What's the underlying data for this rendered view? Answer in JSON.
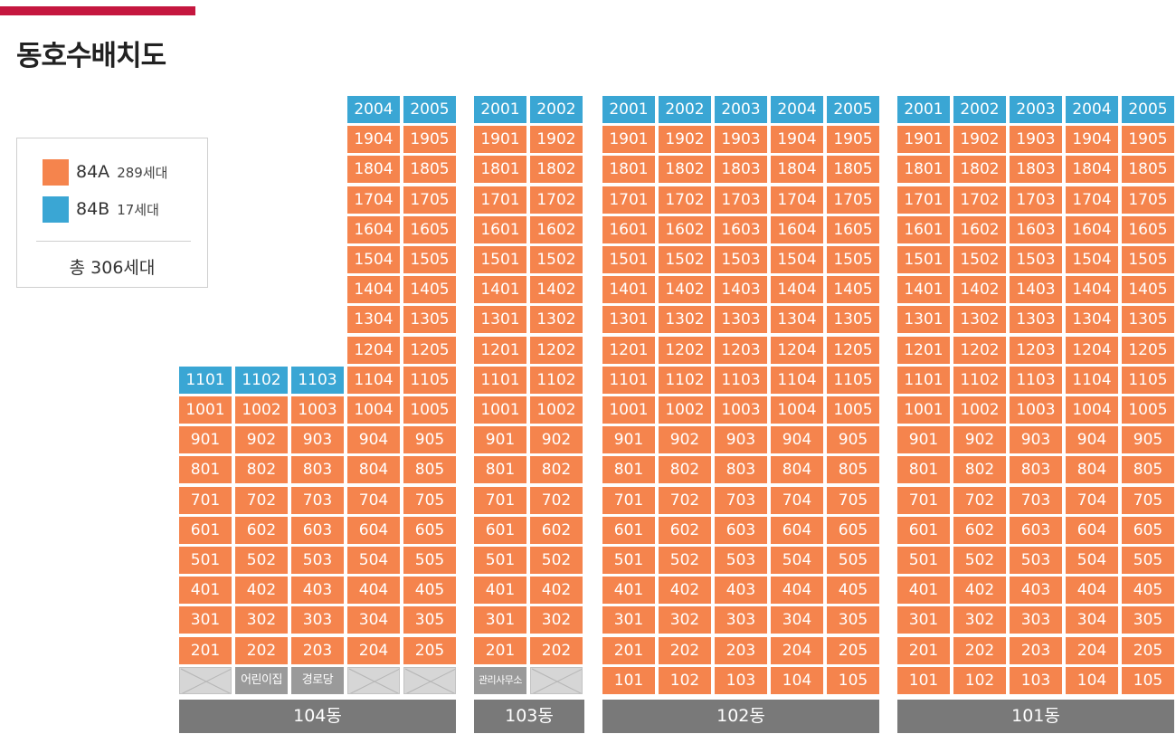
{
  "title": "동호수배치도",
  "colors": {
    "accent": "#c5173f",
    "type_a": "#f5844d",
    "type_b": "#3aa6d4",
    "facility": "#9a9a9a",
    "empty": "#d6d6d6",
    "building_label": "#797979"
  },
  "legend": {
    "items": [
      {
        "type": "84A",
        "count": "289세대",
        "color": "#f5844d"
      },
      {
        "type": "84B",
        "count": "17세대",
        "color": "#3aa6d4"
      }
    ],
    "total": "총 306세대"
  },
  "buildings": [
    {
      "name": "104동",
      "lines": [
        1,
        2,
        3,
        4,
        5
      ],
      "floors": [
        [
          "",
          "",
          "",
          "2004",
          "2005"
        ],
        [
          "",
          "",
          "",
          "1904",
          "1905"
        ],
        [
          "",
          "",
          "",
          "1804",
          "1805"
        ],
        [
          "",
          "",
          "",
          "1704",
          "1705"
        ],
        [
          "",
          "",
          "",
          "1604",
          "1605"
        ],
        [
          "",
          "",
          "",
          "1504",
          "1505"
        ],
        [
          "",
          "",
          "",
          "1404",
          "1405"
        ],
        [
          "",
          "",
          "",
          "1304",
          "1305"
        ],
        [
          "",
          "",
          "",
          "1204",
          "1205"
        ],
        [
          "1101",
          "1102",
          "1103",
          "1104",
          "1105"
        ],
        [
          "1001",
          "1002",
          "1003",
          "1004",
          "1005"
        ],
        [
          "901",
          "902",
          "903",
          "904",
          "905"
        ],
        [
          "801",
          "802",
          "803",
          "804",
          "805"
        ],
        [
          "701",
          "702",
          "703",
          "704",
          "705"
        ],
        [
          "601",
          "602",
          "603",
          "604",
          "605"
        ],
        [
          "501",
          "502",
          "503",
          "504",
          "505"
        ],
        [
          "401",
          "402",
          "403",
          "404",
          "405"
        ],
        [
          "301",
          "302",
          "303",
          "304",
          "305"
        ],
        [
          "201",
          "202",
          "203",
          "204",
          "205"
        ],
        [
          "",
          "어린이집",
          "경로당",
          "",
          ""
        ]
      ],
      "types": [
        [
          "",
          "",
          "",
          "B",
          "B"
        ],
        [
          "",
          "",
          "",
          "A",
          "A"
        ],
        [
          "",
          "",
          "",
          "A",
          "A"
        ],
        [
          "",
          "",
          "",
          "A",
          "A"
        ],
        [
          "",
          "",
          "",
          "A",
          "A"
        ],
        [
          "",
          "",
          "",
          "A",
          "A"
        ],
        [
          "",
          "",
          "",
          "A",
          "A"
        ],
        [
          "",
          "",
          "",
          "A",
          "A"
        ],
        [
          "",
          "",
          "",
          "A",
          "A"
        ],
        [
          "B",
          "B",
          "B",
          "A",
          "A"
        ],
        [
          "A",
          "A",
          "A",
          "A",
          "A"
        ],
        [
          "A",
          "A",
          "A",
          "A",
          "A"
        ],
        [
          "A",
          "A",
          "A",
          "A",
          "A"
        ],
        [
          "A",
          "A",
          "A",
          "A",
          "A"
        ],
        [
          "A",
          "A",
          "A",
          "A",
          "A"
        ],
        [
          "A",
          "A",
          "A",
          "A",
          "A"
        ],
        [
          "A",
          "A",
          "A",
          "A",
          "A"
        ],
        [
          "A",
          "A",
          "A",
          "A",
          "A"
        ],
        [
          "A",
          "A",
          "A",
          "A",
          "A"
        ],
        [
          "X",
          "F",
          "F",
          "X",
          "X"
        ]
      ]
    },
    {
      "name": "103동",
      "lines": [
        1,
        2
      ],
      "floors": [
        [
          "2001",
          "2002"
        ],
        [
          "1901",
          "1902"
        ],
        [
          "1801",
          "1802"
        ],
        [
          "1701",
          "1702"
        ],
        [
          "1601",
          "1602"
        ],
        [
          "1501",
          "1502"
        ],
        [
          "1401",
          "1402"
        ],
        [
          "1301",
          "1302"
        ],
        [
          "1201",
          "1202"
        ],
        [
          "1101",
          "1102"
        ],
        [
          "1001",
          "1002"
        ],
        [
          "901",
          "902"
        ],
        [
          "801",
          "802"
        ],
        [
          "701",
          "702"
        ],
        [
          "601",
          "602"
        ],
        [
          "501",
          "502"
        ],
        [
          "401",
          "402"
        ],
        [
          "301",
          "302"
        ],
        [
          "201",
          "202"
        ],
        [
          "관리사무소",
          ""
        ]
      ],
      "types": [
        [
          "B",
          "B"
        ],
        [
          "A",
          "A"
        ],
        [
          "A",
          "A"
        ],
        [
          "A",
          "A"
        ],
        [
          "A",
          "A"
        ],
        [
          "A",
          "A"
        ],
        [
          "A",
          "A"
        ],
        [
          "A",
          "A"
        ],
        [
          "A",
          "A"
        ],
        [
          "A",
          "A"
        ],
        [
          "A",
          "A"
        ],
        [
          "A",
          "A"
        ],
        [
          "A",
          "A"
        ],
        [
          "A",
          "A"
        ],
        [
          "A",
          "A"
        ],
        [
          "A",
          "A"
        ],
        [
          "A",
          "A"
        ],
        [
          "A",
          "A"
        ],
        [
          "A",
          "A"
        ],
        [
          "F",
          "X"
        ]
      ]
    },
    {
      "name": "102동",
      "lines": [
        1,
        2,
        3,
        4,
        5
      ],
      "floors": [
        [
          "2001",
          "2002",
          "2003",
          "2004",
          "2005"
        ],
        [
          "1901",
          "1902",
          "1903",
          "1904",
          "1905"
        ],
        [
          "1801",
          "1802",
          "1803",
          "1804",
          "1805"
        ],
        [
          "1701",
          "1702",
          "1703",
          "1704",
          "1705"
        ],
        [
          "1601",
          "1602",
          "1603",
          "1604",
          "1605"
        ],
        [
          "1501",
          "1502",
          "1503",
          "1504",
          "1505"
        ],
        [
          "1401",
          "1402",
          "1403",
          "1404",
          "1405"
        ],
        [
          "1301",
          "1302",
          "1303",
          "1304",
          "1305"
        ],
        [
          "1201",
          "1202",
          "1203",
          "1204",
          "1205"
        ],
        [
          "1101",
          "1102",
          "1103",
          "1104",
          "1105"
        ],
        [
          "1001",
          "1002",
          "1003",
          "1004",
          "1005"
        ],
        [
          "901",
          "902",
          "903",
          "904",
          "905"
        ],
        [
          "801",
          "802",
          "803",
          "804",
          "805"
        ],
        [
          "701",
          "702",
          "703",
          "704",
          "705"
        ],
        [
          "601",
          "602",
          "603",
          "604",
          "605"
        ],
        [
          "501",
          "502",
          "503",
          "504",
          "505"
        ],
        [
          "401",
          "402",
          "403",
          "404",
          "405"
        ],
        [
          "301",
          "302",
          "303",
          "304",
          "305"
        ],
        [
          "201",
          "202",
          "203",
          "204",
          "205"
        ],
        [
          "101",
          "102",
          "103",
          "104",
          "105"
        ]
      ],
      "types": [
        [
          "B",
          "B",
          "B",
          "B",
          "B"
        ],
        [
          "A",
          "A",
          "A",
          "A",
          "A"
        ],
        [
          "A",
          "A",
          "A",
          "A",
          "A"
        ],
        [
          "A",
          "A",
          "A",
          "A",
          "A"
        ],
        [
          "A",
          "A",
          "A",
          "A",
          "A"
        ],
        [
          "A",
          "A",
          "A",
          "A",
          "A"
        ],
        [
          "A",
          "A",
          "A",
          "A",
          "A"
        ],
        [
          "A",
          "A",
          "A",
          "A",
          "A"
        ],
        [
          "A",
          "A",
          "A",
          "A",
          "A"
        ],
        [
          "A",
          "A",
          "A",
          "A",
          "A"
        ],
        [
          "A",
          "A",
          "A",
          "A",
          "A"
        ],
        [
          "A",
          "A",
          "A",
          "A",
          "A"
        ],
        [
          "A",
          "A",
          "A",
          "A",
          "A"
        ],
        [
          "A",
          "A",
          "A",
          "A",
          "A"
        ],
        [
          "A",
          "A",
          "A",
          "A",
          "A"
        ],
        [
          "A",
          "A",
          "A",
          "A",
          "A"
        ],
        [
          "A",
          "A",
          "A",
          "A",
          "A"
        ],
        [
          "A",
          "A",
          "A",
          "A",
          "A"
        ],
        [
          "A",
          "A",
          "A",
          "A",
          "A"
        ],
        [
          "A",
          "A",
          "A",
          "A",
          "A"
        ]
      ]
    },
    {
      "name": "101동",
      "lines": [
        1,
        2,
        3,
        4,
        5
      ],
      "floors": [
        [
          "2001",
          "2002",
          "2003",
          "2004",
          "2005"
        ],
        [
          "1901",
          "1902",
          "1903",
          "1904",
          "1905"
        ],
        [
          "1801",
          "1802",
          "1803",
          "1804",
          "1805"
        ],
        [
          "1701",
          "1702",
          "1703",
          "1704",
          "1705"
        ],
        [
          "1601",
          "1602",
          "1603",
          "1604",
          "1605"
        ],
        [
          "1501",
          "1502",
          "1503",
          "1504",
          "1505"
        ],
        [
          "1401",
          "1402",
          "1403",
          "1404",
          "1405"
        ],
        [
          "1301",
          "1302",
          "1303",
          "1304",
          "1305"
        ],
        [
          "1201",
          "1202",
          "1203",
          "1204",
          "1205"
        ],
        [
          "1101",
          "1102",
          "1103",
          "1104",
          "1105"
        ],
        [
          "1001",
          "1002",
          "1003",
          "1004",
          "1005"
        ],
        [
          "901",
          "902",
          "903",
          "904",
          "905"
        ],
        [
          "801",
          "802",
          "803",
          "804",
          "805"
        ],
        [
          "701",
          "702",
          "703",
          "704",
          "705"
        ],
        [
          "601",
          "602",
          "603",
          "604",
          "605"
        ],
        [
          "501",
          "502",
          "503",
          "504",
          "505"
        ],
        [
          "401",
          "402",
          "403",
          "404",
          "405"
        ],
        [
          "301",
          "302",
          "303",
          "304",
          "305"
        ],
        [
          "201",
          "202",
          "203",
          "204",
          "205"
        ],
        [
          "101",
          "102",
          "103",
          "104",
          "105"
        ]
      ],
      "types": [
        [
          "B",
          "B",
          "B",
          "B",
          "B"
        ],
        [
          "A",
          "A",
          "A",
          "A",
          "A"
        ],
        [
          "A",
          "A",
          "A",
          "A",
          "A"
        ],
        [
          "A",
          "A",
          "A",
          "A",
          "A"
        ],
        [
          "A",
          "A",
          "A",
          "A",
          "A"
        ],
        [
          "A",
          "A",
          "A",
          "A",
          "A"
        ],
        [
          "A",
          "A",
          "A",
          "A",
          "A"
        ],
        [
          "A",
          "A",
          "A",
          "A",
          "A"
        ],
        [
          "A",
          "A",
          "A",
          "A",
          "A"
        ],
        [
          "A",
          "A",
          "A",
          "A",
          "A"
        ],
        [
          "A",
          "A",
          "A",
          "A",
          "A"
        ],
        [
          "A",
          "A",
          "A",
          "A",
          "A"
        ],
        [
          "A",
          "A",
          "A",
          "A",
          "A"
        ],
        [
          "A",
          "A",
          "A",
          "A",
          "A"
        ],
        [
          "A",
          "A",
          "A",
          "A",
          "A"
        ],
        [
          "A",
          "A",
          "A",
          "A",
          "A"
        ],
        [
          "A",
          "A",
          "A",
          "A",
          "A"
        ],
        [
          "A",
          "A",
          "A",
          "A",
          "A"
        ],
        [
          "A",
          "A",
          "A",
          "A",
          "A"
        ],
        [
          "A",
          "A",
          "A",
          "A",
          "A"
        ]
      ]
    }
  ]
}
